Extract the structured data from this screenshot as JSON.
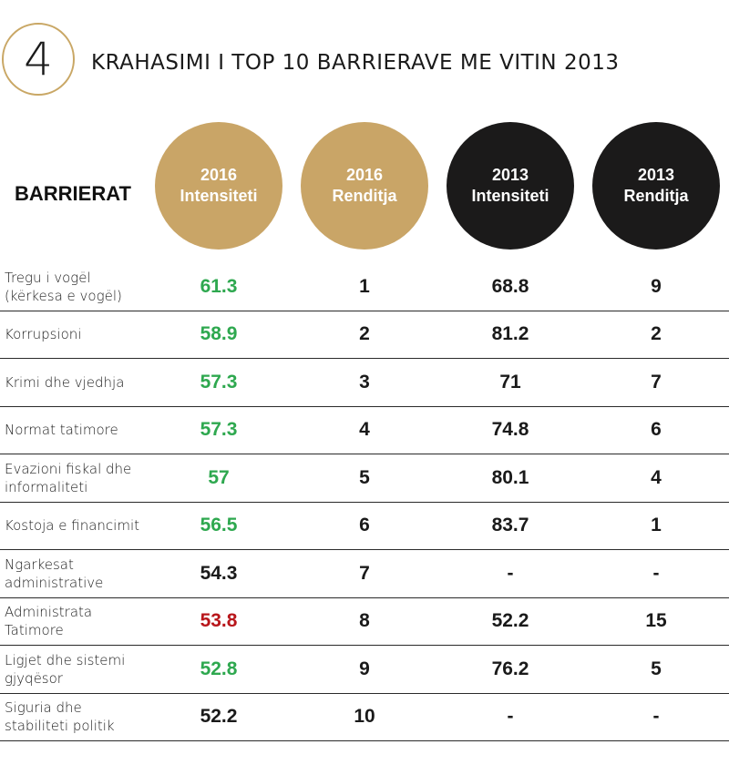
{
  "header": {
    "number": "4",
    "title": "KRAHASIMI I TOP 10 BARRIERAVE ME VITIN 2013"
  },
  "colors": {
    "gold": "#c9a567",
    "black": "#1b1a1a",
    "green": "#2ea84f",
    "red": "#b8161b",
    "dark": "#1a1a1a"
  },
  "chart_data": {
    "type": "table",
    "row_header": "BARRIERAT",
    "columns": [
      {
        "year": "2016",
        "name": "Intensiteti",
        "style": "gold"
      },
      {
        "year": "2016",
        "name": "Renditja",
        "style": "gold"
      },
      {
        "year": "2013",
        "name": "Intensiteti",
        "style": "black"
      },
      {
        "year": "2013",
        "name": "Renditja",
        "style": "black"
      }
    ],
    "rows": [
      {
        "label": [
          "Tregu i vogël",
          "(kërkesa e vogël)"
        ],
        "values": [
          "61.3",
          "1",
          "68.8",
          "9"
        ],
        "color": "green"
      },
      {
        "label": [
          "Korrupsioni"
        ],
        "values": [
          "58.9",
          "2",
          "81.2",
          "2"
        ],
        "color": "green"
      },
      {
        "label": [
          "Krimi dhe vjedhja"
        ],
        "values": [
          "57.3",
          "3",
          "71",
          "7"
        ],
        "color": "green"
      },
      {
        "label": [
          "Normat tatimore"
        ],
        "values": [
          "57.3",
          "4",
          "74.8",
          "6"
        ],
        "color": "green"
      },
      {
        "label": [
          "Evazioni fiskal dhe",
          "informaliteti"
        ],
        "values": [
          "57",
          "5",
          "80.1",
          "4"
        ],
        "color": "green"
      },
      {
        "label": [
          "Kostoja e financimit"
        ],
        "values": [
          "56.5",
          "6",
          "83.7",
          "1"
        ],
        "color": "green"
      },
      {
        "label": [
          "Ngarkesat",
          "administrative"
        ],
        "values": [
          "54.3",
          "7",
          "-",
          "-"
        ],
        "color": "dark"
      },
      {
        "label": [
          "Administrata",
          "Tatimore"
        ],
        "values": [
          "53.8",
          "8",
          "52.2",
          "15"
        ],
        "color": "red"
      },
      {
        "label": [
          "Ligjet dhe sistemi",
          "gjyqësor"
        ],
        "values": [
          "52.8",
          "9",
          "76.2",
          "5"
        ],
        "color": "green"
      },
      {
        "label": [
          "Siguria dhe",
          "stabiliteti politik"
        ],
        "values": [
          "52.2",
          "10",
          "-",
          "-"
        ],
        "color": "dark"
      }
    ]
  }
}
